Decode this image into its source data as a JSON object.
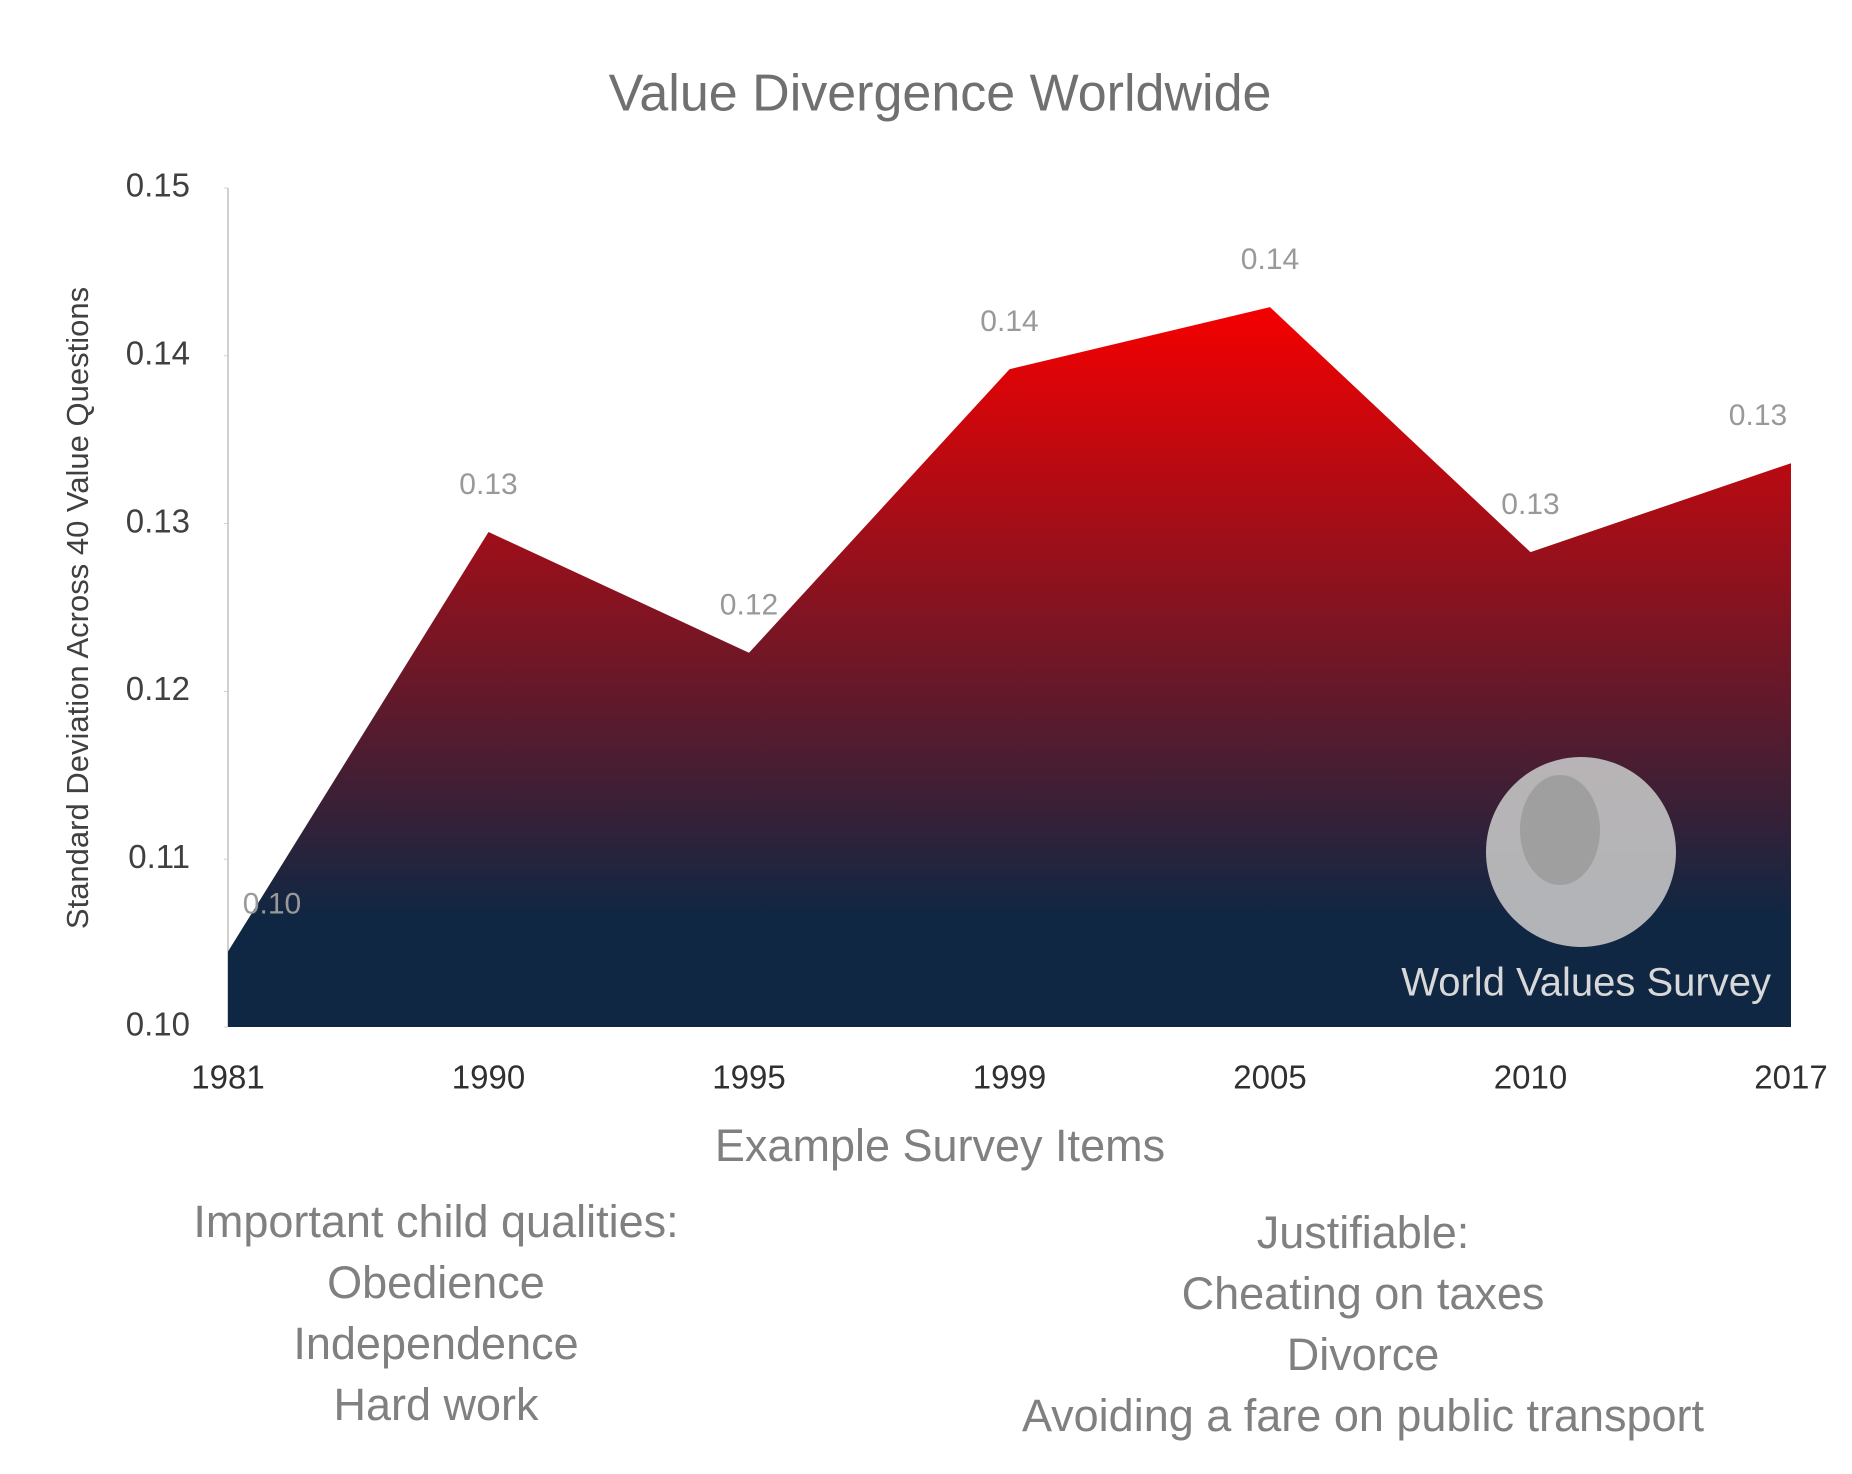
{
  "chart_data": {
    "type": "area",
    "title": "Value Divergence Worldwide",
    "y_label": "Standard Deviation Across 40 Value Questions",
    "x_label": "Example Survey Items",
    "categories": [
      "1981",
      "1990",
      "1995",
      "1999",
      "2005",
      "2010",
      "2017"
    ],
    "values": [
      0.1045,
      0.1295,
      0.1223,
      0.1392,
      0.1429,
      0.1283,
      0.1336
    ],
    "value_labels": [
      "0.10",
      "0.13",
      "0.12",
      "0.14",
      "0.14",
      "0.13",
      "0.13"
    ],
    "gradient": [
      "#f50000",
      "#0f2743"
    ],
    "ylim": [
      0.1,
      0.15
    ],
    "yticks": [
      {
        "value": 0.1,
        "label": "0.10"
      },
      0.11,
      0.12,
      0.13,
      0.14,
      0.15
    ],
    "watermark": "World Values Survey"
  },
  "notes": [
    {
      "heading": "Important child qualities:",
      "items": [
        "Obedience",
        "Independence",
        "Hard work"
      ]
    },
    {
      "heading": "Justifiable:",
      "items": [
        "Cheating on taxes",
        "Divorce",
        "Avoiding a fare on public transport"
      ]
    }
  ]
}
